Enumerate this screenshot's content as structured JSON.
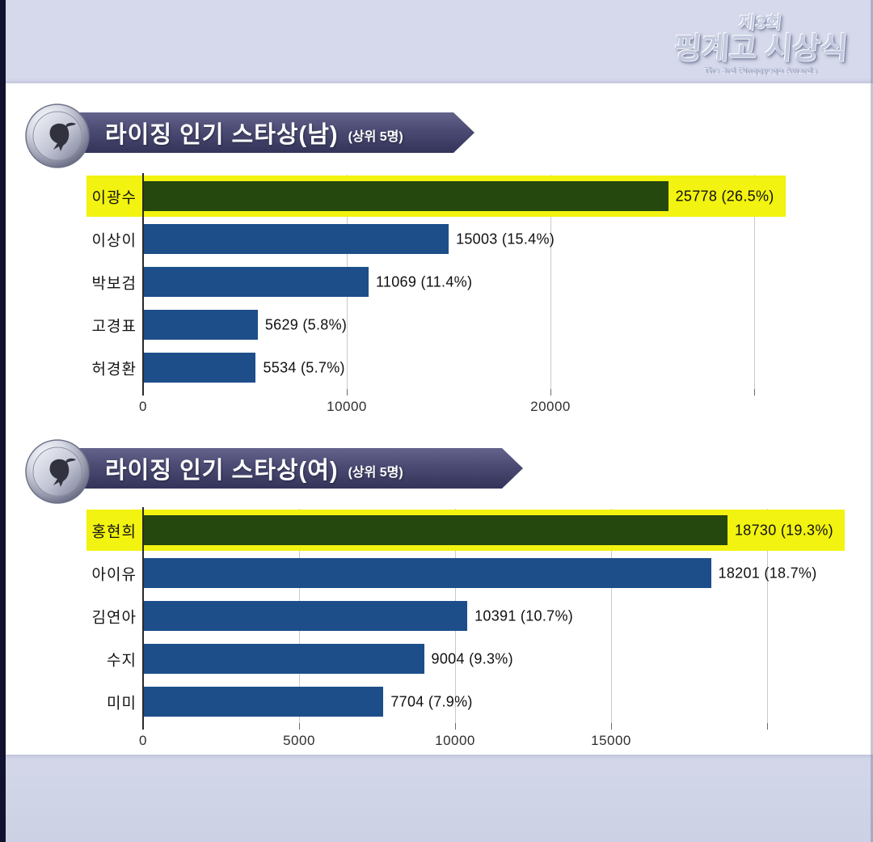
{
  "header": {
    "edition": "제3회",
    "logo_title": "핑계고 시상식",
    "logo_subtitle": "The 3rd Pinggyego Awards"
  },
  "colors": {
    "page_bg": "#d6d9eb",
    "panel_bg": "#ffffff",
    "edge_strip": "#12122e",
    "banner_top": "#63638c",
    "banner_bottom": "#34345a",
    "bar_blue": "#1d4e8a",
    "bar_green_winner": "#25480e",
    "highlight_yellow": "#f2f310",
    "gridline": "#c9c9cd",
    "axis_line": "#2a2a2a",
    "label_text": "#141414"
  },
  "icons": {
    "medallion": "silver-medal-with-bird-figure"
  },
  "chart_data": [
    {
      "type": "bar",
      "orientation": "horizontal",
      "title": "라이징 인기 스타상(남)",
      "title_note": "(상위 5명)",
      "categories": [
        "이광수",
        "이상이",
        "박보검",
        "고경표",
        "허경환"
      ],
      "values": [
        25778,
        15003,
        11069,
        5629,
        5534
      ],
      "percentages": [
        26.5,
        15.4,
        11.4,
        5.8,
        5.7
      ],
      "value_labels": [
        "25778 (26.5%)",
        "15003 (15.4%)",
        "11069 (11.4%)",
        "5629 (5.8%)",
        "5534 (5.7%)"
      ],
      "highlighted_index": 0,
      "highlight_color": "#f2f310",
      "xlim": [
        0,
        30000
      ],
      "tick_values": [
        0,
        10000,
        20000,
        30000
      ],
      "tick_labels": [
        "0",
        "10000",
        "20000",
        ""
      ],
      "grid": true,
      "legend": false
    },
    {
      "type": "bar",
      "orientation": "horizontal",
      "title": "라이징 인기 스타상(여)",
      "title_note": "(상위 5명)",
      "categories": [
        "홍현희",
        "아이유",
        "김연아",
        "수지",
        "미미"
      ],
      "values": [
        18730,
        18201,
        10391,
        9004,
        7704
      ],
      "percentages": [
        19.3,
        18.7,
        10.7,
        9.3,
        7.9
      ],
      "value_labels": [
        "18730 (19.3%)",
        "18201 (18.7%)",
        "10391 (10.7%)",
        "9004 (9.3%)",
        "7704 (7.9%)"
      ],
      "highlighted_index": 0,
      "highlight_color": "#f2f310",
      "xlim": [
        0,
        20000
      ],
      "tick_values": [
        0,
        5000,
        10000,
        15000,
        20000
      ],
      "tick_labels": [
        "0",
        "5000",
        "10000",
        "15000",
        ""
      ],
      "grid": true,
      "legend": false
    }
  ]
}
